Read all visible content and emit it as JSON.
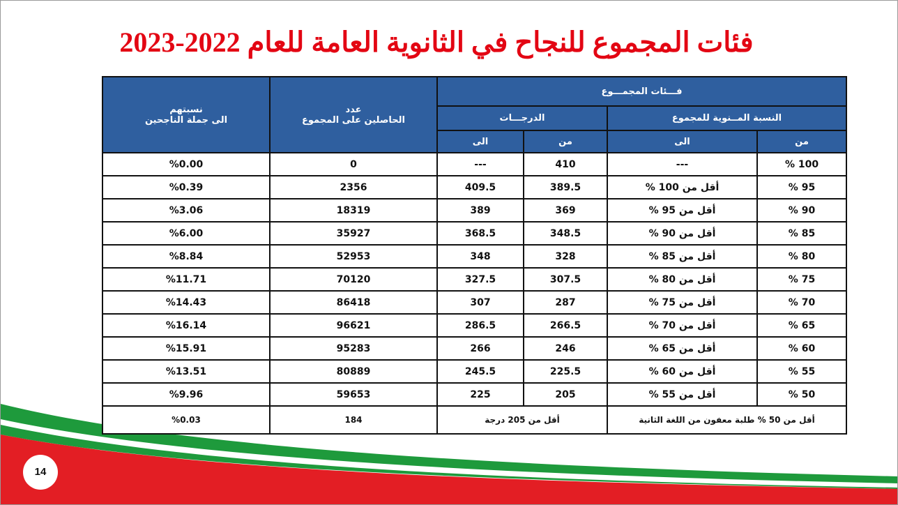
{
  "title": "فئات المجموع للنجاح في الثانوية العامة للعام 2022-2023",
  "table": {
    "header": {
      "group": "فـــئات المجمـــوع",
      "percent_group": "النسبة المــنوية للمجموع",
      "degrees_group": "الدرجـــات",
      "percent_from": "من",
      "percent_to": "الى",
      "degrees_from": "من",
      "degrees_to": "الى",
      "count": [
        "عدد",
        "الحاصلين على المجموع"
      ],
      "share": [
        "نسبتهم",
        "الى جملة الناجحين"
      ]
    },
    "rows": [
      [
        "% 100",
        "---",
        "410",
        "---",
        "0",
        "%0.00"
      ],
      [
        "% 95",
        "أقل من 100 %",
        "389.5",
        "409.5",
        "2356",
        "%0.39"
      ],
      [
        "% 90",
        "أقل من  95 %",
        "369",
        "389",
        "18319",
        "%3.06"
      ],
      [
        "% 85",
        "أقل من  90 %",
        "348.5",
        "368.5",
        "35927",
        "%6.00"
      ],
      [
        "% 80",
        "أقل من  85 %",
        "328",
        "348",
        "52953",
        "%8.84"
      ],
      [
        "% 75",
        "أقل من  80 %",
        "307.5",
        "327.5",
        "70120",
        "%11.71"
      ],
      [
        "% 70",
        "أقل من  75 %",
        "287",
        "307",
        "86418",
        "%14.43"
      ],
      [
        "% 65",
        "أقل من  70 %",
        "266.5",
        "286.5",
        "96621",
        "%16.14"
      ],
      [
        "% 60",
        "أقل من  65 %",
        "246",
        "266",
        "95283",
        "%15.91"
      ],
      [
        "% 55",
        "أقل من  60 %",
        "225.5",
        "245.5",
        "80889",
        "%13.51"
      ],
      [
        "% 50",
        "أقل من  55 %",
        "205",
        "225",
        "59653",
        "%9.96"
      ]
    ],
    "last_row": {
      "percent_note": "أقل من 50 % طلبة معفون من اللغة الثانية",
      "degrees_note": "أقل من  205  درجة",
      "count": "184",
      "share": "%0.03"
    }
  },
  "page_number": "14"
}
